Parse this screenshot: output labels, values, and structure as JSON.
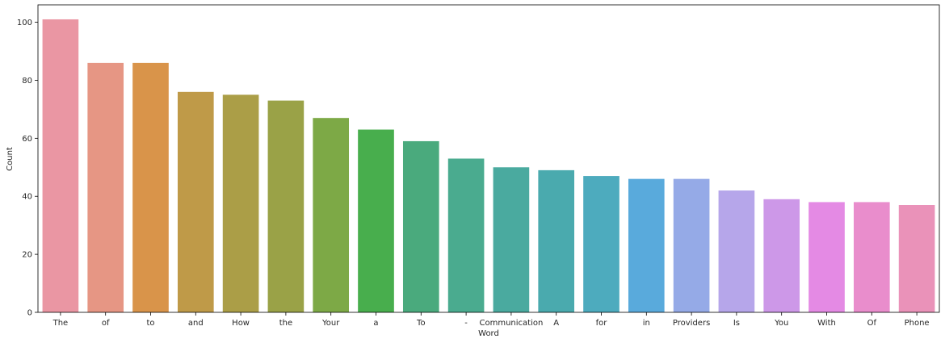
{
  "chart_data": {
    "type": "bar",
    "xlabel": "Word",
    "ylabel": "Count",
    "ylim": [
      0,
      106
    ],
    "yticks": [
      0,
      20,
      40,
      60,
      80,
      100
    ],
    "grid": false,
    "categories": [
      "The",
      "of",
      "to",
      "and",
      "How",
      "the",
      "Your",
      "a",
      "To",
      "-",
      "Communication",
      "A",
      "for",
      "in",
      "Providers",
      "Is",
      "You",
      "With",
      "Of",
      "Phone"
    ],
    "values": [
      101,
      86,
      86,
      76,
      75,
      73,
      67,
      63,
      59,
      53,
      50,
      49,
      47,
      46,
      46,
      42,
      39,
      38,
      38,
      37
    ],
    "colors": [
      "#ea96a3",
      "#e69684",
      "#d9944a",
      "#bf9a48",
      "#ab9e47",
      "#9aa247",
      "#7da946",
      "#48ae4d",
      "#4aaa7d",
      "#4aab8f",
      "#4aaa9f",
      "#4aaaae",
      "#4dabbe",
      "#59aadc",
      "#95aae7",
      "#b6a6ea",
      "#cd98e8",
      "#e48ae4",
      "#e98dcc",
      "#ea92b9"
    ]
  }
}
